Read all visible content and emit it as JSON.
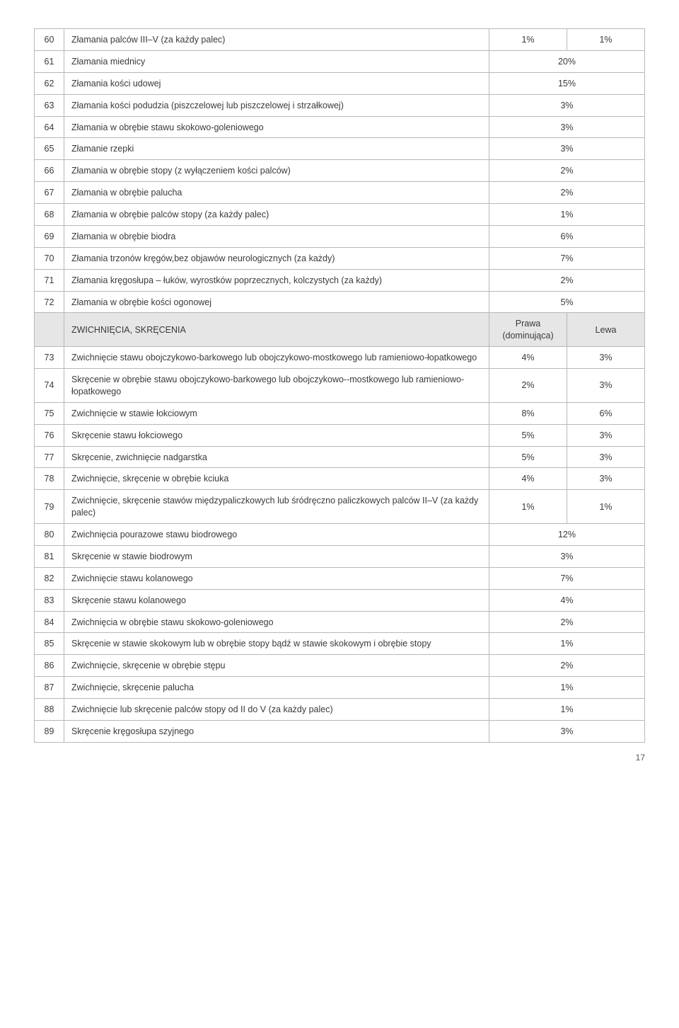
{
  "rows": [
    {
      "n": "60",
      "desc": "Złamania palców III–V (za każdy palec)",
      "v1": "1%",
      "v2": "1%",
      "merged": false
    },
    {
      "n": "61",
      "desc": "Złamania miednicy",
      "v1": "20%",
      "merged": true
    },
    {
      "n": "62",
      "desc": "Złamania kości udowej",
      "v1": "15%",
      "merged": true
    },
    {
      "n": "63",
      "desc": "Złamania kości podudzia (piszczelowej lub piszczelowej i strzałkowej)",
      "v1": "3%",
      "merged": true
    },
    {
      "n": "64",
      "desc": "Złamania w obrębie stawu skokowo-goleniowego",
      "v1": "3%",
      "merged": true
    },
    {
      "n": "65",
      "desc": "Złamanie rzepki",
      "v1": "3%",
      "merged": true
    },
    {
      "n": "66",
      "desc": "Złamania w obrębie stopy (z wyłączeniem kości palców)",
      "v1": "2%",
      "merged": true
    },
    {
      "n": "67",
      "desc": "Złamania w obrębie palucha",
      "v1": "2%",
      "merged": true
    },
    {
      "n": "68",
      "desc": "Złamania w obrębie palców stopy (za każdy palec)",
      "v1": "1%",
      "merged": true
    },
    {
      "n": "69",
      "desc": "Złamania w obrębie biodra",
      "v1": "6%",
      "merged": true
    },
    {
      "n": "70",
      "desc": "Złamania trzonów kręgów,bez objawów neurologicznych (za każdy)",
      "v1": "7%",
      "merged": true
    },
    {
      "n": "71",
      "desc": "Złamania kręgosłupa – łuków, wyrostków poprzecznych, kolczystych (za każdy)",
      "v1": "2%",
      "merged": true
    },
    {
      "n": "72",
      "desc": "Złamania w obrębie kości ogonowej",
      "v1": "5%",
      "merged": true
    }
  ],
  "section_header": {
    "title": "ZWICHNIĘCIA, SKRĘCENIA",
    "col1": "Prawa (dominująca)",
    "col2": "Lewa"
  },
  "rows2": [
    {
      "n": "73",
      "desc": "Zwichnięcie stawu obojczykowo-barkowego lub obojczykowo-mostkowego lub ramieniowo-łopatkowego",
      "v1": "4%",
      "v2": "3%",
      "merged": false
    },
    {
      "n": "74",
      "desc": "Skręcenie w obrębie stawu obojczykowo-barkowego lub obojczykowo--mostkowego lub ramieniowo-łopatkowego",
      "v1": "2%",
      "v2": "3%",
      "merged": false
    },
    {
      "n": "75",
      "desc": "Zwichnięcie w stawie łokciowym",
      "v1": "8%",
      "v2": "6%",
      "merged": false
    },
    {
      "n": "76",
      "desc": "Skręcenie stawu łokciowego",
      "v1": "5%",
      "v2": "3%",
      "merged": false
    },
    {
      "n": "77",
      "desc": "Skręcenie, zwichnięcie nadgarstka",
      "v1": "5%",
      "v2": "3%",
      "merged": false
    },
    {
      "n": "78",
      "desc": "Zwichnięcie, skręcenie w obrębie kciuka",
      "v1": "4%",
      "v2": "3%",
      "merged": false
    },
    {
      "n": "79",
      "desc": "Zwichnięcie, skręcenie stawów międzypaliczkowych lub śródręczno paliczkowych palców II–V (za każdy palec)",
      "v1": "1%",
      "v2": "1%",
      "merged": false
    },
    {
      "n": "80",
      "desc": "Zwichnięcia pourazowe stawu biodrowego",
      "v1": "12%",
      "merged": true
    },
    {
      "n": "81",
      "desc": "Skręcenie w stawie biodrowym",
      "v1": "3%",
      "merged": true
    },
    {
      "n": "82",
      "desc": "Zwichnięcie stawu kolanowego",
      "v1": "7%",
      "merged": true
    },
    {
      "n": "83",
      "desc": "Skręcenie stawu kolanowego",
      "v1": "4%",
      "merged": true
    },
    {
      "n": "84",
      "desc": "Zwichnięcia w obrębie stawu skokowo-goleniowego",
      "v1": "2%",
      "merged": true
    },
    {
      "n": "85",
      "desc": "Skręcenie w stawie skokowym lub w obrębie stopy bądź w stawie skokowym i obrębie stopy",
      "v1": "1%",
      "merged": true
    },
    {
      "n": "86",
      "desc": "Zwichnięcie, skręcenie w obrębie stępu",
      "v1": "2%",
      "merged": true
    },
    {
      "n": "87",
      "desc": "Zwichnięcie, skręcenie palucha",
      "v1": "1%",
      "merged": true
    },
    {
      "n": "88",
      "desc": "Zwichnięcie lub skręcenie palców stopy od II do V (za każdy palec)",
      "v1": "1%",
      "merged": true
    },
    {
      "n": "89",
      "desc": "Skręcenie kręgosłupa szyjnego",
      "v1": "3%",
      "merged": true
    }
  ],
  "page_number": "17"
}
